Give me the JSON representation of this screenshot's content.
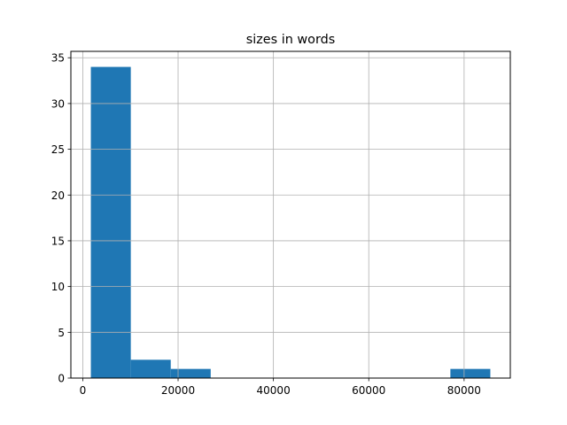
{
  "chart_data": {
    "type": "bar",
    "subtype": "histogram",
    "title": "sizes in words",
    "xlabel": "",
    "ylabel": "",
    "bin_edges": [
      1700,
      10080,
      18460,
      26840,
      35220,
      43600,
      51980,
      60360,
      68740,
      77120,
      85500
    ],
    "values": [
      34,
      2,
      1,
      0,
      0,
      0,
      0,
      0,
      0,
      1
    ],
    "xlim": [
      -2490,
      89690
    ],
    "ylim": [
      0,
      35.7
    ],
    "xticks": [
      0,
      20000,
      40000,
      60000,
      80000
    ],
    "yticks": [
      0,
      5,
      10,
      15,
      20,
      25,
      30,
      35
    ],
    "grid": true,
    "bar_color": "#1f77b4",
    "grid_color": "#b0b0b0"
  }
}
